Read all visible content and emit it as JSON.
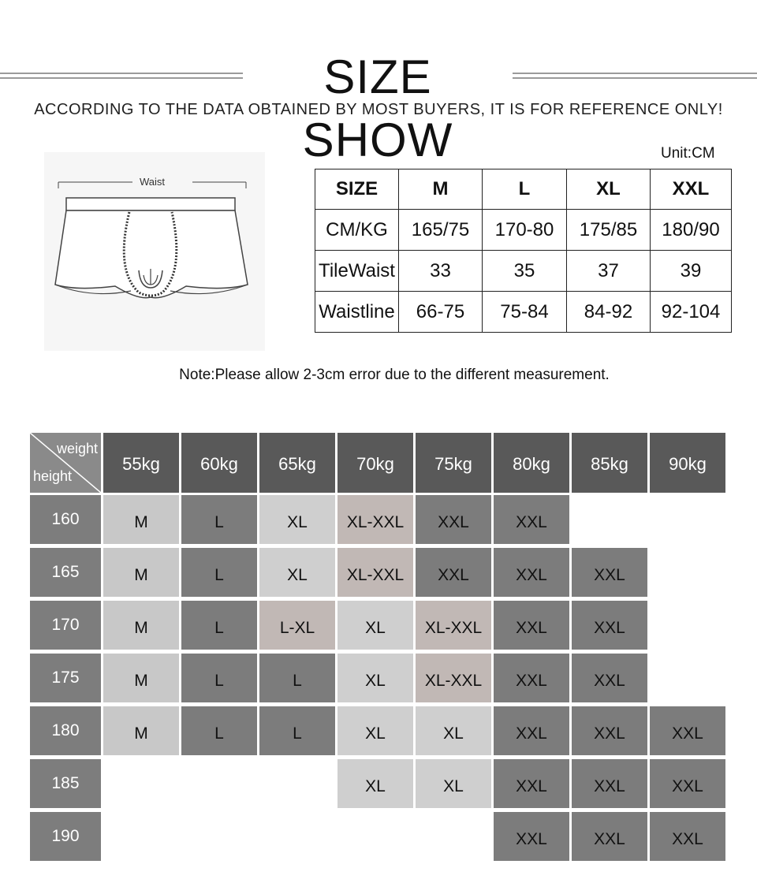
{
  "header": {
    "title": "SIZE SHOW",
    "subtitle": "ACCORDING TO THE DATA OBTAINED BY MOST BUYERS, IT IS FOR REFERENCE ONLY!"
  },
  "illustration": {
    "waist_label": "Waist"
  },
  "size_chart": {
    "unit": "Unit:CM",
    "header": [
      "SIZE",
      "M",
      "L",
      "XL",
      "XXL"
    ],
    "rows": [
      [
        "CM/KG",
        "165/75",
        "170-80",
        "175/85",
        "180/90"
      ],
      [
        "TileWaist",
        "33",
        "35",
        "37",
        "39"
      ],
      [
        "Waistline",
        "66-75",
        "75-84",
        "84-92",
        "92-104"
      ]
    ]
  },
  "note": "Note:Please allow 2-3cm error due to the different measurement.",
  "fit_grid": {
    "corner_weight": "weight",
    "corner_height": "height",
    "weights": [
      "55kg",
      "60kg",
      "65kg",
      "70kg",
      "75kg",
      "80kg",
      "85kg",
      "90kg"
    ],
    "rows": [
      {
        "height": "160",
        "cells": [
          "M",
          "L",
          "XL",
          "XL-XXL",
          "XXL",
          "XXL",
          "",
          ""
        ]
      },
      {
        "height": "165",
        "cells": [
          "M",
          "L",
          "XL",
          "XL-XXL",
          "XXL",
          "XXL",
          "XXL",
          ""
        ]
      },
      {
        "height": "170",
        "cells": [
          "M",
          "L",
          "L-XL",
          "XL",
          "XL-XXL",
          "XXL",
          "XXL",
          ""
        ]
      },
      {
        "height": "175",
        "cells": [
          "M",
          "L",
          "L",
          "XL",
          "XL-XXL",
          "XXL",
          "XXL",
          ""
        ]
      },
      {
        "height": "180",
        "cells": [
          "M",
          "L",
          "L",
          "XL",
          "XL",
          "XXL",
          "XXL",
          "XXL"
        ]
      },
      {
        "height": "185",
        "cells": [
          "",
          "",
          "",
          "XL",
          "XL",
          "XXL",
          "XXL",
          "XXL"
        ]
      },
      {
        "height": "190",
        "cells": [
          "",
          "",
          "",
          "",
          "",
          "XXL",
          "XXL",
          "XXL"
        ]
      }
    ]
  },
  "colors": {
    "header_gray": "#595959",
    "row_header_gray": "#7d7d7d",
    "light_cell": "#c8c8c8",
    "dark_cell": "#7c7c7c",
    "pink_cell": "#c1b8b5"
  }
}
